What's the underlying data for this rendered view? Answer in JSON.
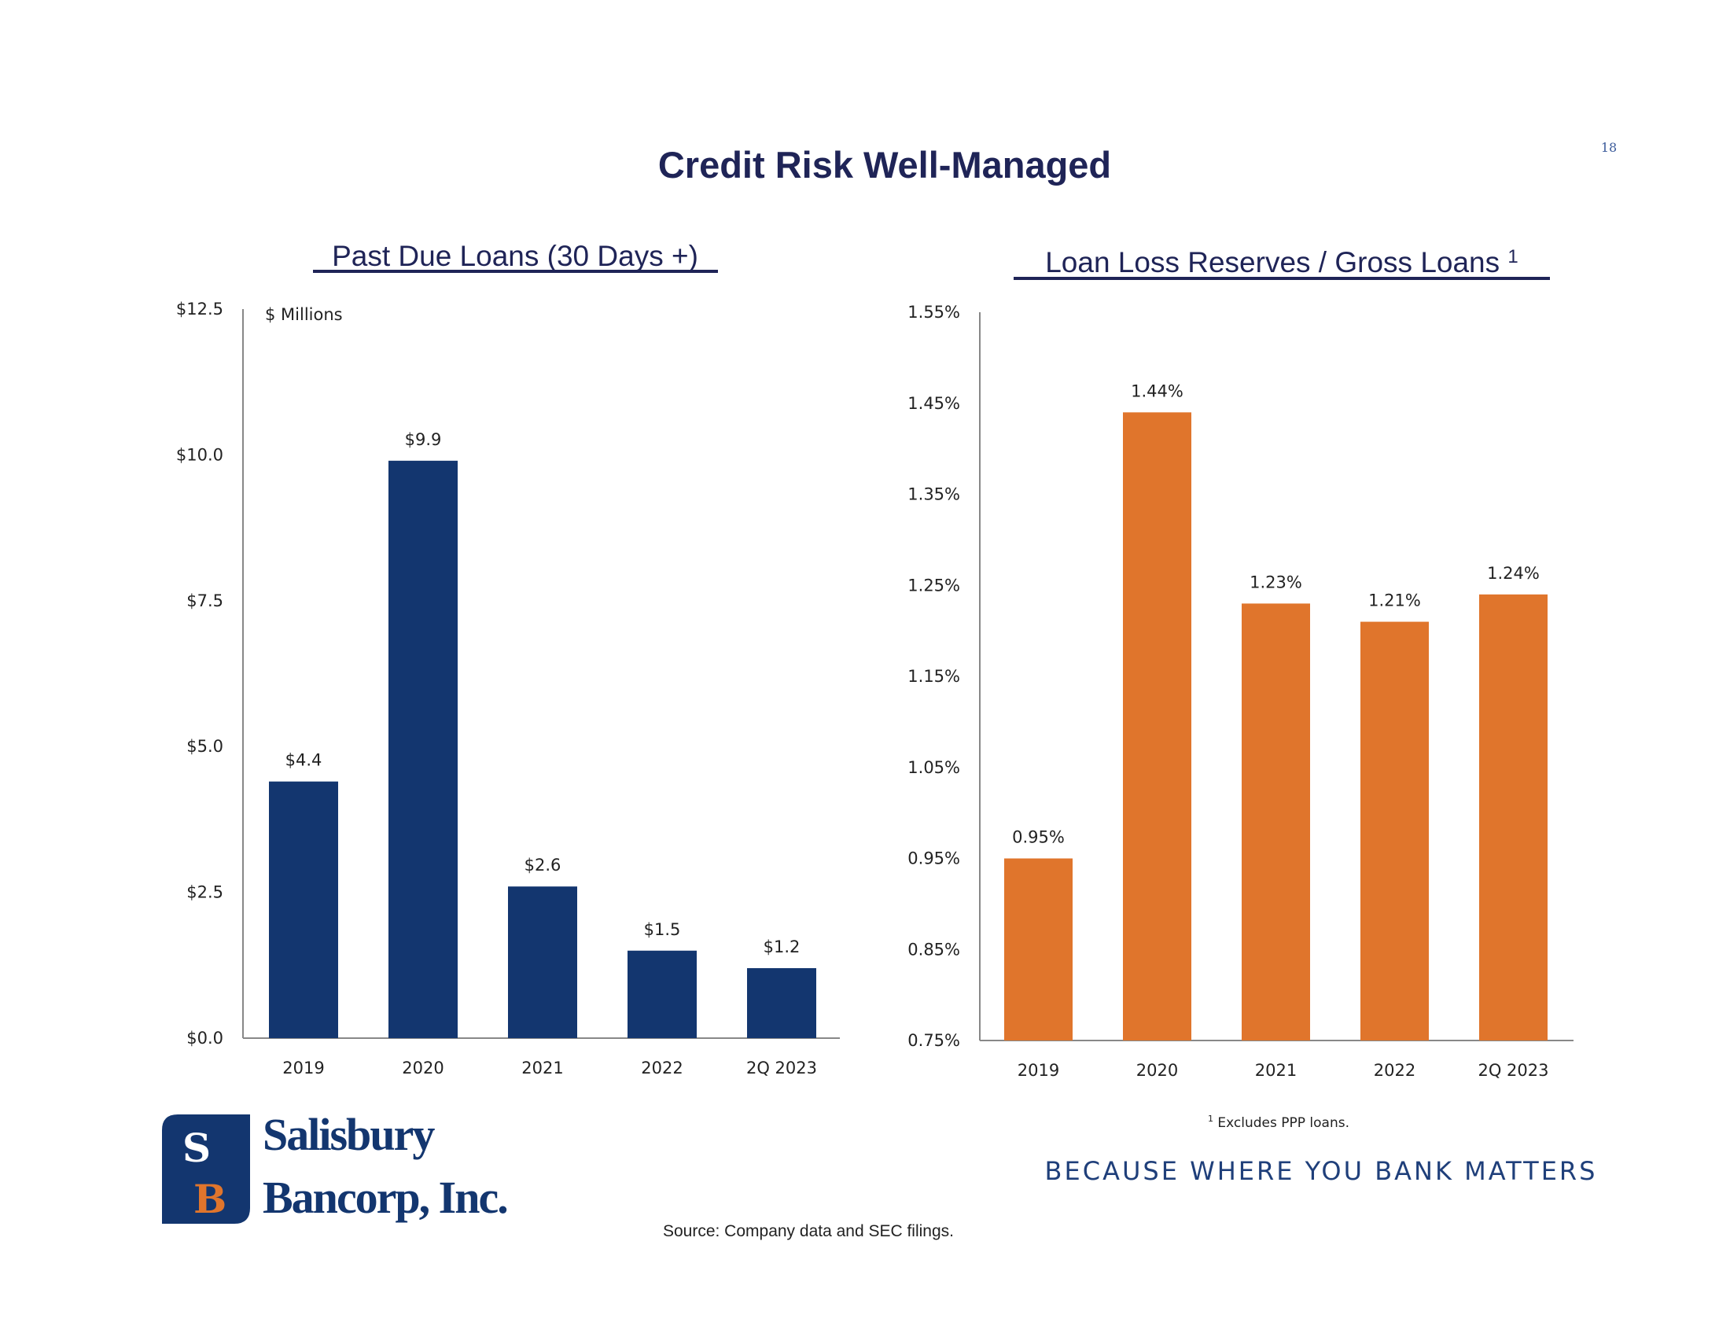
{
  "page_number": "18",
  "title": "Credit Risk Well-Managed",
  "source": "Source: Company data and SEC filings.",
  "footnote": {
    "mark": "1",
    "text": "Excludes PPP loans."
  },
  "tagline": "BECAUSE WHERE YOU BANK MATTERS",
  "logo": {
    "monogram_s": "S",
    "monogram_b": "B",
    "line1": "Salisbury",
    "line2": "Bancorp, Inc."
  },
  "colors": {
    "navy": "#13366F",
    "orange": "#E0752C",
    "title": "#1F2457"
  },
  "chart_data": [
    {
      "type": "bar",
      "title": "Past Due Loans (30 Days +)",
      "unit_label": "$ Millions",
      "categories": [
        "2019",
        "2020",
        "2021",
        "2022",
        "2Q 2023"
      ],
      "values": [
        4.4,
        9.9,
        2.6,
        1.5,
        1.2
      ],
      "data_labels": [
        "$4.4",
        "$9.9",
        "$2.6",
        "$1.5",
        "$1.2"
      ],
      "ylim": [
        0,
        12.5
      ],
      "yticks": [
        "$0.0",
        "$2.5",
        "$5.0",
        "$7.5",
        "$10.0",
        "$12.5"
      ],
      "color": "#13366F",
      "grid": false
    },
    {
      "type": "bar",
      "title": "Loan Loss Reserves / Gross Loans",
      "title_superscript": "1",
      "categories": [
        "2019",
        "2020",
        "2021",
        "2022",
        "2Q 2023"
      ],
      "values": [
        0.95,
        1.44,
        1.23,
        1.21,
        1.24
      ],
      "data_labels": [
        "0.95%",
        "1.44%",
        "1.23%",
        "1.21%",
        "1.24%"
      ],
      "ylim": [
        0.75,
        1.55
      ],
      "yticks": [
        "0.75%",
        "0.85%",
        "0.95%",
        "1.05%",
        "1.15%",
        "1.25%",
        "1.35%",
        "1.45%",
        "1.55%"
      ],
      "color": "#E0752C",
      "grid": false
    }
  ]
}
